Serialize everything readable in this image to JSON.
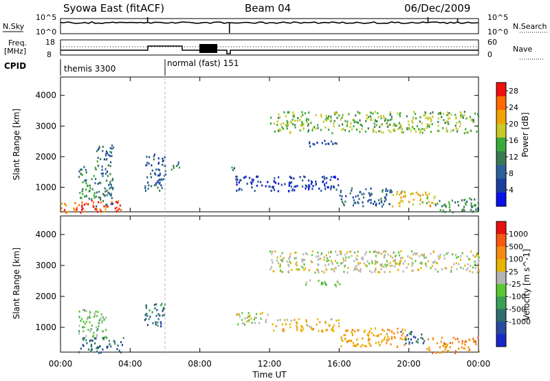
{
  "header": {
    "station": "Syowa East (fitACF)",
    "beam": "Beam 04",
    "date": "06/Dec/2009"
  },
  "noise_panel": {
    "left_label": "N.Sky",
    "right_label": "N.Search",
    "right_label_style": "dotted",
    "ticks_left": [
      "10^5",
      "10^0"
    ],
    "ticks_right": [
      "10^5",
      "10^0"
    ]
  },
  "freq_panel": {
    "left_label_line1": "Freq.",
    "left_label_line2": "[MHz]",
    "ticks_left": [
      "18",
      "8"
    ],
    "right_label": "Nave",
    "ticks_right": [
      "60",
      "0"
    ]
  },
  "cpid": {
    "label": "CPID",
    "modes": [
      {
        "name": "themis 3300",
        "start_hour": 0.0
      },
      {
        "name": "normal (fast) 151",
        "start_hour": 6.0
      }
    ]
  },
  "x_axis": {
    "label": "Time UT",
    "ticks": [
      "00:00",
      "04:00",
      "08:00",
      "12:00",
      "16:00",
      "20:00",
      "00:00"
    ],
    "range_hours": [
      0,
      24
    ]
  },
  "colors": {
    "power_scale": [
      "#0a10e8",
      "#1c3ea0",
      "#2d5f9a",
      "#3a7a52",
      "#3aaa3a",
      "#c8c828",
      "#f2a300",
      "#ff6a00",
      "#ee1010"
    ],
    "velocity_scale": [
      "#1a28c8",
      "#2a4aa0",
      "#2e6e6e",
      "#3aa055",
      "#5ac830",
      "#b4b4b4",
      "#e8b400",
      "#f58a10",
      "#f55a10",
      "#e81010"
    ]
  },
  "chart_data": [
    {
      "type": "heatmap",
      "panel": "power",
      "ylabel": "Slant Range [km]",
      "xlabel": "",
      "yticks": [
        "1000",
        "2000",
        "3000",
        "4000"
      ],
      "ylim": [
        200,
        4600
      ],
      "colorbar_label": "Power [dB]",
      "colorbar_ticks": [
        "4",
        "8",
        "12",
        "16",
        "20",
        "24",
        "28"
      ],
      "colorbar_range": [
        0,
        30
      ],
      "regions": [
        {
          "t": [
            0.0,
            3.6
          ],
          "r": [
            200,
            600
          ],
          "v": 26
        },
        {
          "t": [
            1.0,
            2.0
          ],
          "r": [
            600,
            1700
          ],
          "v": 12
        },
        {
          "t": [
            2.0,
            3.0
          ],
          "r": [
            400,
            2400
          ],
          "v": 10
        },
        {
          "t": [
            4.8,
            6.0
          ],
          "r": [
            900,
            2100
          ],
          "v": 8
        },
        {
          "t": [
            6.2,
            6.8
          ],
          "r": [
            1600,
            1900
          ],
          "v": 10
        },
        {
          "t": [
            9.8,
            10.0
          ],
          "r": [
            1500,
            1900
          ],
          "v": 10
        },
        {
          "t": [
            10.0,
            16.0
          ],
          "r": [
            900,
            1400
          ],
          "v": 5
        },
        {
          "t": [
            14.0,
            16.0
          ],
          "r": [
            2350,
            2550
          ],
          "v": 5
        },
        {
          "t": [
            16.0,
            19.0
          ],
          "r": [
            400,
            1000
          ],
          "v": 8
        },
        {
          "t": [
            19.0,
            21.5
          ],
          "r": [
            400,
            900
          ],
          "v": 20
        },
        {
          "t": [
            21.5,
            24.0
          ],
          "r": [
            200,
            700
          ],
          "v": 12
        },
        {
          "t": [
            12.0,
            24.0
          ],
          "r": [
            2800,
            3500
          ],
          "v": 16
        }
      ]
    },
    {
      "type": "heatmap",
      "panel": "velocity",
      "ylabel": "Slant Range [km]",
      "xlabel": "Time UT",
      "yticks": [
        "1000",
        "2000",
        "3000",
        "4000"
      ],
      "ylim": [
        200,
        4600
      ],
      "colorbar_label": "Velocity [m s^-1]",
      "colorbar_ticks": [
        "1000",
        "500",
        "100",
        "25",
        "-25",
        "-100",
        "-500",
        "-1000"
      ],
      "colorbar_range": [
        -1000,
        1000
      ],
      "regions": [
        {
          "t": [
            1.0,
            3.6
          ],
          "r": [
            200,
            700
          ],
          "v": -500
        },
        {
          "t": [
            1.0,
            2.6
          ],
          "r": [
            700,
            1600
          ],
          "v": -100
        },
        {
          "t": [
            4.8,
            6.0
          ],
          "r": [
            1000,
            1800
          ],
          "v": -500
        },
        {
          "t": [
            10.0,
            12.0
          ],
          "r": [
            1100,
            1500
          ],
          "v": 100
        },
        {
          "t": [
            12.0,
            16.0
          ],
          "r": [
            900,
            1300
          ],
          "v": 300
        },
        {
          "t": [
            14.0,
            16.0
          ],
          "r": [
            2350,
            2550
          ],
          "v": -100
        },
        {
          "t": [
            16.0,
            20.0
          ],
          "r": [
            400,
            1000
          ],
          "v": 400
        },
        {
          "t": [
            19.5,
            21.0
          ],
          "r": [
            500,
            900
          ],
          "v": -500
        },
        {
          "t": [
            21.0,
            24.0
          ],
          "r": [
            200,
            700
          ],
          "v": 500
        },
        {
          "t": [
            12.0,
            24.0
          ],
          "r": [
            2800,
            3500
          ],
          "v": 100
        }
      ]
    }
  ]
}
